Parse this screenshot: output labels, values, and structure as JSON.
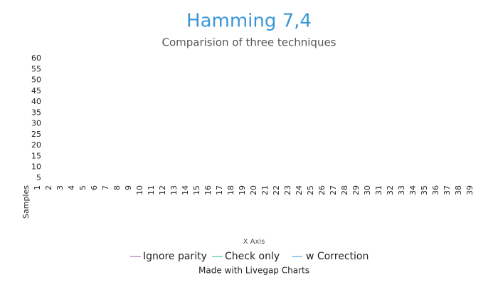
{
  "chart_data": {
    "type": "line",
    "title": "Hamming 7,4",
    "subtitle": "Comparision of three techniques",
    "x_label": "X Axis",
    "footer": "Made with Livegap Charts",
    "categories": [
      "Samples",
      "1",
      "2",
      "3",
      "4",
      "5",
      "6",
      "7",
      "8",
      "9",
      "10",
      "11",
      "12",
      "13",
      "14",
      "15",
      "16",
      "17",
      "18",
      "19",
      "20",
      "21",
      "22",
      "23",
      "24",
      "25",
      "26",
      "27",
      "28",
      "29",
      "30",
      "31",
      "32",
      "33",
      "34",
      "35",
      "36",
      "37",
      "38",
      "39"
    ],
    "series": [
      {
        "name": "Ignore parity",
        "color": "#9b59b6",
        "values": [
          null,
          null,
          null,
          null,
          null,
          null,
          null,
          null,
          null,
          null,
          null,
          null,
          null,
          null,
          null,
          null,
          null,
          null,
          null,
          null,
          null,
          null,
          null,
          null,
          null,
          null,
          null,
          null,
          null,
          null,
          null,
          null,
          null,
          null,
          null,
          null,
          null,
          null,
          null,
          null
        ]
      },
      {
        "name": "Check only",
        "color": "#1abc9c",
        "values": [
          null,
          null,
          null,
          null,
          null,
          null,
          null,
          null,
          null,
          null,
          null,
          null,
          null,
          null,
          null,
          null,
          null,
          null,
          null,
          null,
          null,
          null,
          null,
          null,
          null,
          null,
          null,
          null,
          null,
          null,
          null,
          null,
          null,
          null,
          null,
          null,
          null,
          null,
          null,
          null
        ]
      },
      {
        "name": "w Correction",
        "color": "#3498db",
        "values": [
          null,
          null,
          null,
          null,
          null,
          null,
          null,
          null,
          null,
          null,
          null,
          null,
          null,
          null,
          null,
          null,
          null,
          null,
          null,
          null,
          null,
          null,
          null,
          null,
          null,
          null,
          null,
          null,
          null,
          null,
          null,
          null,
          null,
          null,
          null,
          null,
          null,
          null,
          null,
          null
        ]
      }
    ],
    "ylim": [
      0,
      60
    ],
    "yticks": [
      5,
      10,
      15,
      20,
      25,
      30,
      35,
      40,
      45,
      50,
      55,
      60
    ],
    "grid": false
  }
}
